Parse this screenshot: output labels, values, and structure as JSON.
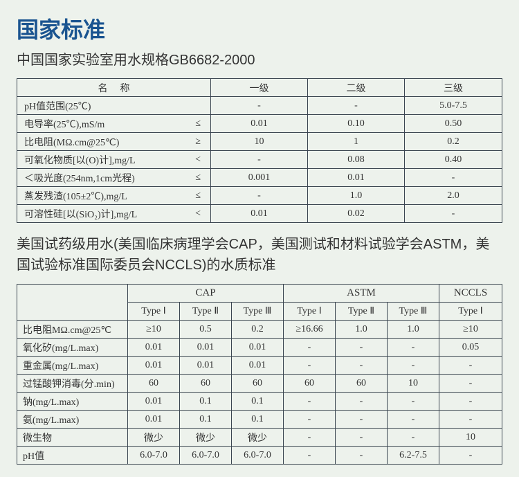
{
  "title": "国家标准",
  "subtitle1": "中国国家实验室用水规格GB6682-2000",
  "table1": {
    "headers": {
      "name": "名称",
      "c1": "一级",
      "c2": "二级",
      "c3": "三级"
    },
    "rows": [
      {
        "label": "pH值范围(25℃)",
        "op": "",
        "c1": "-",
        "c2": "-",
        "c3": "5.0-7.5"
      },
      {
        "label": "电导率(25℃),mS/m",
        "op": "≤",
        "c1": "0.01",
        "c2": "0.10",
        "c3": "0.50"
      },
      {
        "label": "比电阻(MΩ.cm@25℃)",
        "op": "≥",
        "c1": "10",
        "c2": "1",
        "c3": "0.2"
      },
      {
        "label": "可氧化物质[以(O)计],mg/L",
        "op": "<",
        "c1": "-",
        "c2": "0.08",
        "c3": "0.40"
      },
      {
        "label": "＜吸光度(254nm,1cm光程)",
        "op": "≤",
        "c1": "0.001",
        "c2": "0.01",
        "c3": "-"
      },
      {
        "label": "蒸发残渣(105±2℃),mg/L",
        "op": "≤",
        "c1": "-",
        "c2": "1.0",
        "c3": "2.0"
      },
      {
        "label": "可溶性硅[以(SiO₂)计],mg/L",
        "op": "<",
        "c1": "0.01",
        "c2": "0.02",
        "c3": "-"
      }
    ]
  },
  "subtitle2": "美国试药级用水(美国临床病理学会CAP，美国测试和材料试验学会ASTM，美国试验标准国际委员会NCCLS)的水质标准",
  "table2": {
    "groups": {
      "g1": "CAP",
      "g2": "ASTM",
      "g3": "NCCLS"
    },
    "subheaders": {
      "s1": "Type Ⅰ",
      "s2": "Type Ⅱ",
      "s3": "Type Ⅲ",
      "s4": "Type Ⅰ",
      "s5": "Type Ⅱ",
      "s6": "Type Ⅲ",
      "s7": "Type Ⅰ"
    },
    "rows": [
      {
        "label": "比电阻MΩ.cm@25℃",
        "v": [
          "≥10",
          "0.5",
          "0.2",
          "≥16.66",
          "1.0",
          "1.0",
          "≥10"
        ]
      },
      {
        "label": "氧化矽(mg/L.max)",
        "v": [
          "0.01",
          "0.01",
          "0.01",
          "-",
          "-",
          "-",
          "0.05"
        ]
      },
      {
        "label": "重金属(mg/L.max)",
        "v": [
          "0.01",
          "0.01",
          "0.01",
          "-",
          "-",
          "-",
          "-"
        ]
      },
      {
        "label": "过锰酸钾消毒(分.min)",
        "v": [
          "60",
          "60",
          "60",
          "60",
          "60",
          "10",
          "-"
        ]
      },
      {
        "label": "钠(mg/L.max)",
        "v": [
          "0.01",
          "0.1",
          "0.1",
          "-",
          "-",
          "-",
          "-"
        ]
      },
      {
        "label": "氨(mg/L.max)",
        "v": [
          "0.01",
          "0.1",
          "0.1",
          "-",
          "-",
          "-",
          "-"
        ]
      },
      {
        "label": "微生物",
        "v": [
          "微少",
          "微少",
          "微少",
          "-",
          "-",
          "-",
          "10"
        ]
      },
      {
        "label": "pH值",
        "v": [
          "6.0-7.0",
          "6.0-7.0",
          "6.0-7.0",
          "-",
          "-",
          "6.2-7.5",
          "-"
        ]
      }
    ]
  }
}
